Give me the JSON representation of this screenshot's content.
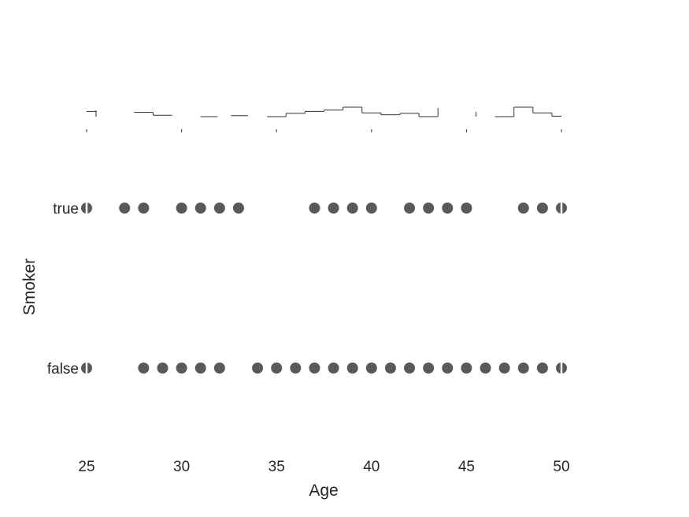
{
  "chart_data": {
    "type": "scatter",
    "title": "",
    "xlabel": "Age",
    "ylabel": "Smoker",
    "xlim": [
      25,
      50
    ],
    "x_ticks": [
      25,
      30,
      35,
      40,
      45,
      50
    ],
    "categories": [
      "true",
      "false"
    ],
    "grid": false,
    "legend": "none",
    "series": [
      {
        "category": "true",
        "x": [
          25,
          27,
          28,
          30,
          31,
          32,
          33,
          37,
          38,
          39,
          40,
          42,
          43,
          44,
          45,
          48,
          49,
          50
        ]
      },
      {
        "category": "false",
        "x": [
          25,
          28,
          29,
          30,
          31,
          32,
          34,
          35,
          36,
          37,
          38,
          39,
          40,
          41,
          42,
          43,
          44,
          45,
          46,
          47,
          48,
          49,
          50
        ]
      }
    ],
    "marginal_histogram": {
      "x_ticks": [
        25,
        30,
        35,
        40,
        45,
        50
      ],
      "segments": [
        {
          "x0": 25.0,
          "x1": 25.5,
          "level": 0.55
        },
        {
          "x0": 27.5,
          "x1": 28.5,
          "level": 0.45
        },
        {
          "x0": 28.5,
          "x1": 29.5,
          "level": 0.15
        },
        {
          "x0": 31.0,
          "x1": 31.9,
          "level": 0.0
        },
        {
          "x0": 32.6,
          "x1": 33.5,
          "level": 0.1
        },
        {
          "x0": 34.5,
          "x1": 35.5,
          "level": 0.0
        },
        {
          "x0": 35.5,
          "x1": 36.5,
          "level": 0.35
        },
        {
          "x0": 36.5,
          "x1": 37.5,
          "level": 0.55
        },
        {
          "x0": 37.5,
          "x1": 38.5,
          "level": 0.7
        },
        {
          "x0": 38.5,
          "x1": 39.5,
          "level": 1.0
        },
        {
          "x0": 39.5,
          "x1": 40.5,
          "level": 0.4
        },
        {
          "x0": 40.5,
          "x1": 41.5,
          "level": 0.2
        },
        {
          "x0": 41.5,
          "x1": 42.5,
          "level": 0.35
        },
        {
          "x0": 42.5,
          "x1": 43.5,
          "level": 0.0
        },
        {
          "x0": 46.5,
          "x1": 47.5,
          "level": 0.0
        },
        {
          "x0": 47.5,
          "x1": 48.5,
          "level": 1.0
        },
        {
          "x0": 48.5,
          "x1": 49.5,
          "level": 0.4
        },
        {
          "x0": 49.5,
          "x1": 50.0,
          "level": 0.05
        }
      ]
    }
  },
  "colors": {
    "marker": "#595959",
    "axis": "#262626",
    "hist": "#333333"
  }
}
